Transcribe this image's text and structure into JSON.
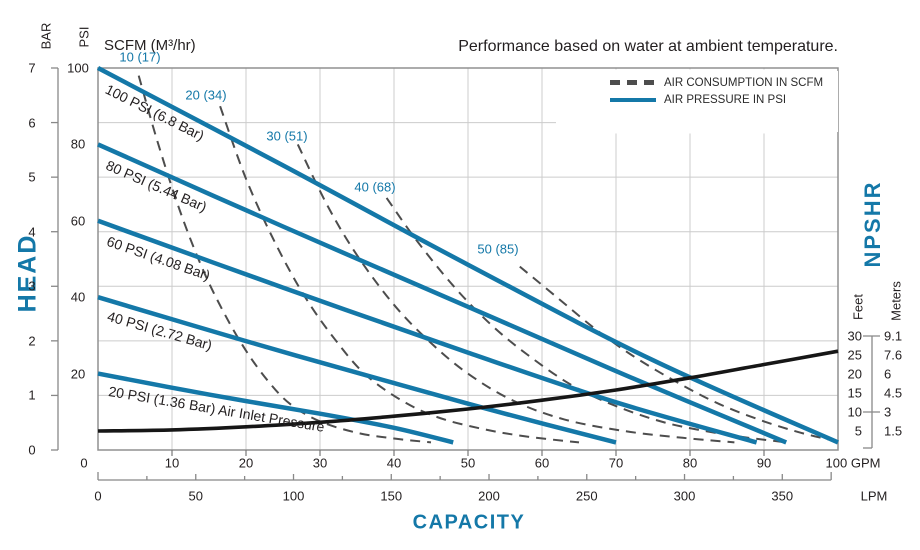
{
  "annotation": "Performance based on water at ambient temperature.",
  "colors": {
    "accent_blue": "#1478a8",
    "dashed_gray": "#4d4d4d",
    "npshr_black": "#161616",
    "grid": "#cccccc",
    "plot_border": "#909090"
  },
  "legend": {
    "items": [
      {
        "label": "AIR CONSUMPTION IN SCFM",
        "sample": "dashed-black"
      },
      {
        "label": "AIR PRESSURE IN PSI",
        "sample": "solid-blue"
      }
    ]
  },
  "axes": {
    "left": {
      "title": "HEAD",
      "units": [
        "BAR",
        "PSI"
      ],
      "bar_ticks": [
        7,
        6,
        5,
        4,
        3,
        2,
        1,
        0
      ],
      "psi_ticks": [
        100,
        80,
        60,
        40,
        20
      ]
    },
    "bottom": {
      "title": "CAPACITY",
      "gpm_unit": "GPM",
      "lpm_unit": "LPM",
      "gpm_ticks": [
        0,
        10,
        20,
        30,
        40,
        50,
        60,
        70,
        80,
        90,
        100
      ],
      "lpm_ticks": [
        0,
        50,
        100,
        150,
        200,
        250,
        300,
        350
      ]
    },
    "right": {
      "title": "NPSHR",
      "units": [
        "Feet",
        "Meters"
      ],
      "feet_ticks": [
        30,
        25,
        20,
        15,
        10,
        5
      ],
      "meters_ticks": [
        "9.1",
        "7.6",
        "6",
        "4.5",
        "3",
        "1.5"
      ]
    },
    "scfm_header": "SCFM (M³/hr)"
  },
  "chart_data": {
    "type": "line",
    "title": "Performance based on water at ambient temperature.",
    "xlabel": "CAPACITY",
    "ylabel": "HEAD",
    "y2label": "NPSHR",
    "x_axis": {
      "unit_primary": "GPM",
      "range_gpm": [
        0,
        100
      ],
      "unit_secondary": "LPM",
      "range_lpm": [
        0,
        378
      ]
    },
    "y_axis": {
      "unit_primary": "PSI",
      "range_psi": [
        0,
        100
      ],
      "unit_secondary": "BAR",
      "range_bar": [
        0,
        7
      ]
    },
    "y2_axis": {
      "unit_primary": "Feet",
      "range_feet": [
        0,
        30
      ],
      "unit_secondary": "Meters"
    },
    "grid": true,
    "legend_position": "top-right-inside",
    "series": [
      {
        "name": "100 PSI",
        "label": "100 PSI (6.8 Bar)",
        "units": "GPM vs PSI head",
        "points": [
          [
            0,
            100
          ],
          [
            25,
            74.5
          ],
          [
            50,
            48.5
          ],
          [
            75,
            23.5
          ],
          [
            100,
            2
          ]
        ]
      },
      {
        "name": "80 PSI",
        "label": "80 PSI (5.44 Bar)",
        "units": "GPM vs PSI head",
        "points": [
          [
            0,
            80
          ],
          [
            25,
            58.5
          ],
          [
            50,
            37.5
          ],
          [
            72,
            19
          ],
          [
            93,
            2
          ]
        ]
      },
      {
        "name": "60 PSI",
        "label": "60 PSI (4.08 Bar)",
        "units": "GPM vs PSI head",
        "points": [
          [
            0,
            60
          ],
          [
            25,
            42.5
          ],
          [
            50,
            25.5
          ],
          [
            70,
            12.5
          ],
          [
            89,
            2
          ]
        ]
      },
      {
        "name": "40 PSI",
        "label": "40 PSI (2.72 Bar)",
        "units": "GPM vs PSI head",
        "points": [
          [
            0,
            40
          ],
          [
            20,
            28.5
          ],
          [
            40,
            17.5
          ],
          [
            55,
            9.5
          ],
          [
            70,
            2
          ]
        ]
      },
      {
        "name": "20 PSI",
        "label": "20 PSI (1.36 Bar) Air Inlet Pressure",
        "units": "GPM vs PSI head",
        "points": [
          [
            0,
            20
          ],
          [
            15,
            14.5
          ],
          [
            30,
            9.5
          ],
          [
            40,
            5.8
          ],
          [
            48,
            2
          ]
        ]
      }
    ],
    "air_consumption_curves": [
      {
        "name": "10 SCFM",
        "label": "10 (17)",
        "units": "GPM vs PSI head",
        "points": [
          [
            5.5,
            98
          ],
          [
            8,
            81
          ],
          [
            11,
            63
          ],
          [
            14,
            48
          ],
          [
            17,
            36
          ],
          [
            20,
            26
          ],
          [
            23,
            18
          ],
          [
            26,
            12
          ],
          [
            30,
            7.5
          ],
          [
            35,
            4.5
          ],
          [
            40,
            3
          ],
          [
            45,
            2
          ]
        ]
      },
      {
        "name": "20 SCFM",
        "label": "20 (34)",
        "units": "GPM vs PSI head",
        "points": [
          [
            16.5,
            90
          ],
          [
            20,
            71
          ],
          [
            24,
            54
          ],
          [
            28,
            40
          ],
          [
            32,
            29
          ],
          [
            36,
            20
          ],
          [
            41,
            13
          ],
          [
            46,
            8.5
          ],
          [
            52,
            5.5
          ],
          [
            58,
            3.5
          ],
          [
            65,
            2
          ]
        ]
      },
      {
        "name": "30 SCFM",
        "label": "30 (51)",
        "units": "GPM vs PSI head",
        "points": [
          [
            27,
            80
          ],
          [
            31,
            64
          ],
          [
            35,
            51
          ],
          [
            40,
            38
          ],
          [
            45,
            28
          ],
          [
            50,
            20
          ],
          [
            56,
            13
          ],
          [
            63,
            8
          ],
          [
            71,
            5
          ],
          [
            79,
            3.2
          ],
          [
            86,
            2
          ]
        ]
      },
      {
        "name": "40 SCFM",
        "label": "40 (68)",
        "units": "GPM vs PSI head",
        "points": [
          [
            39,
            66
          ],
          [
            43,
            55
          ],
          [
            48,
            43
          ],
          [
            53,
            33
          ],
          [
            58,
            25
          ],
          [
            64,
            17
          ],
          [
            70,
            11.5
          ],
          [
            77,
            7
          ],
          [
            85,
            4
          ],
          [
            93,
            2
          ]
        ]
      },
      {
        "name": "50 SCFM",
        "label": "50 (85)",
        "units": "GPM vs PSI head",
        "points": [
          [
            57,
            48
          ],
          [
            62,
            40
          ],
          [
            67,
            32
          ],
          [
            72,
            25
          ],
          [
            78,
            18
          ],
          [
            84,
            12
          ],
          [
            90,
            7.5
          ],
          [
            95,
            4.5
          ],
          [
            100,
            2.2
          ]
        ]
      }
    ],
    "npshr_curve": {
      "name": "NPSHR",
      "units": "GPM vs Feet",
      "points": [
        [
          0,
          5
        ],
        [
          10,
          5.3
        ],
        [
          20,
          6.1
        ],
        [
          30,
          7.3
        ],
        [
          40,
          8.9
        ],
        [
          50,
          10.8
        ],
        [
          60,
          13.1
        ],
        [
          70,
          15.8
        ],
        [
          80,
          19
        ],
        [
          90,
          22.5
        ],
        [
          100,
          26
        ]
      ]
    }
  }
}
